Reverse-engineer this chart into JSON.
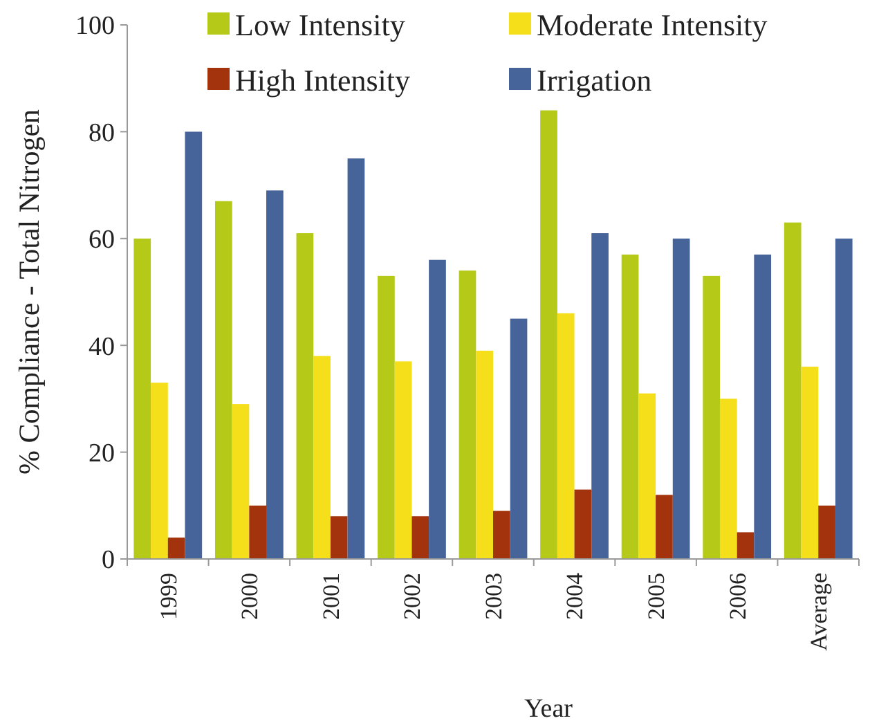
{
  "chart_data": {
    "type": "bar",
    "xlabel": "Year",
    "ylabel": "% Compliance - Total Nitrogen",
    "categories": [
      "1999",
      "2000",
      "2001",
      "2002",
      "2003",
      "2004",
      "2005",
      "2006",
      "Average"
    ],
    "series": [
      {
        "name": "Low Intensity",
        "color": "#b5c918",
        "values": [
          60,
          67,
          61,
          53,
          54,
          84,
          57,
          53,
          63
        ]
      },
      {
        "name": "Moderate Intensity",
        "color": "#f5df1a",
        "values": [
          33,
          29,
          38,
          37,
          39,
          46,
          31,
          30,
          36
        ]
      },
      {
        "name": "High Intensity",
        "color": "#a2330c",
        "values": [
          4,
          10,
          8,
          8,
          9,
          13,
          12,
          5,
          10
        ]
      },
      {
        "name": "Irrigation",
        "color": "#46639a",
        "values": [
          80,
          69,
          75,
          56,
          45,
          61,
          60,
          57,
          60
        ]
      }
    ],
    "ylim": [
      0,
      100
    ],
    "yticks": [
      0,
      20,
      40,
      60,
      80,
      100
    ],
    "grid": false,
    "legend": "top"
  }
}
